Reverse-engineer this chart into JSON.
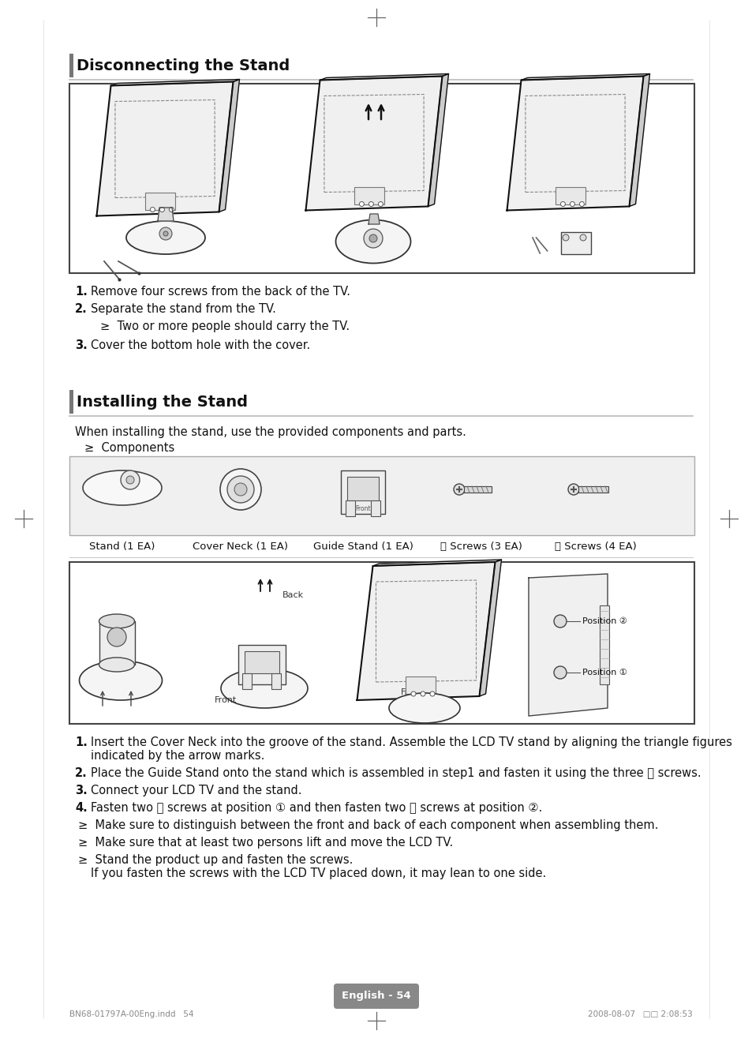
{
  "page_bg": "#ffffff",
  "section1_title": "Disconnecting the Stand",
  "section2_title": "Installing the Stand",
  "step1_1": "Remove four screws from the back of the TV.",
  "step1_2": "Separate the stand from the TV.",
  "step1_2s": "≥  Two or more people should carry the TV.",
  "step1_3": "Cover the bottom hole with the cover.",
  "section2_intro": "When installing the stand, use the provided components and parts.",
  "section2_sub": "≥  Components",
  "comp_labels": [
    "Stand (1 EA)",
    "Cover Neck (1 EA)",
    "Guide Stand (1 EA)",
    "Ⓐ Screws (3 EA)",
    "Ⓑ Screws (4 EA)"
  ],
  "s2_step1a": "Insert the Cover Neck into the groove of the stand. Assemble the LCD TV stand by aligning the triangle figures",
  "s2_step1b": "indicated by the arrow marks.",
  "s2_step2": "Place the Guide Stand onto the stand which is assembled in step1 and fasten it using the three Ⓐ screws.",
  "s2_step3": "Connect your LCD TV and the stand.",
  "s2_step4": "Fasten two Ⓑ screws at position ① and then fasten two Ⓑ screws at position ②.",
  "s2_note1": "≥  Make sure to distinguish between the front and back of each component when assembling them.",
  "s2_note2": "≥  Make sure that at least two persons lift and move the LCD TV.",
  "s2_note3": "≥  Stand the product up and fasten the screws.",
  "s2_note3b": "If you fasten the screws with the LCD TV placed down, it may lean to one side.",
  "footer": "English - 54",
  "footer_left": "BN68-01797A-00Eng.indd   54",
  "footer_right": "2008-08-07   □□ 2:08:53"
}
